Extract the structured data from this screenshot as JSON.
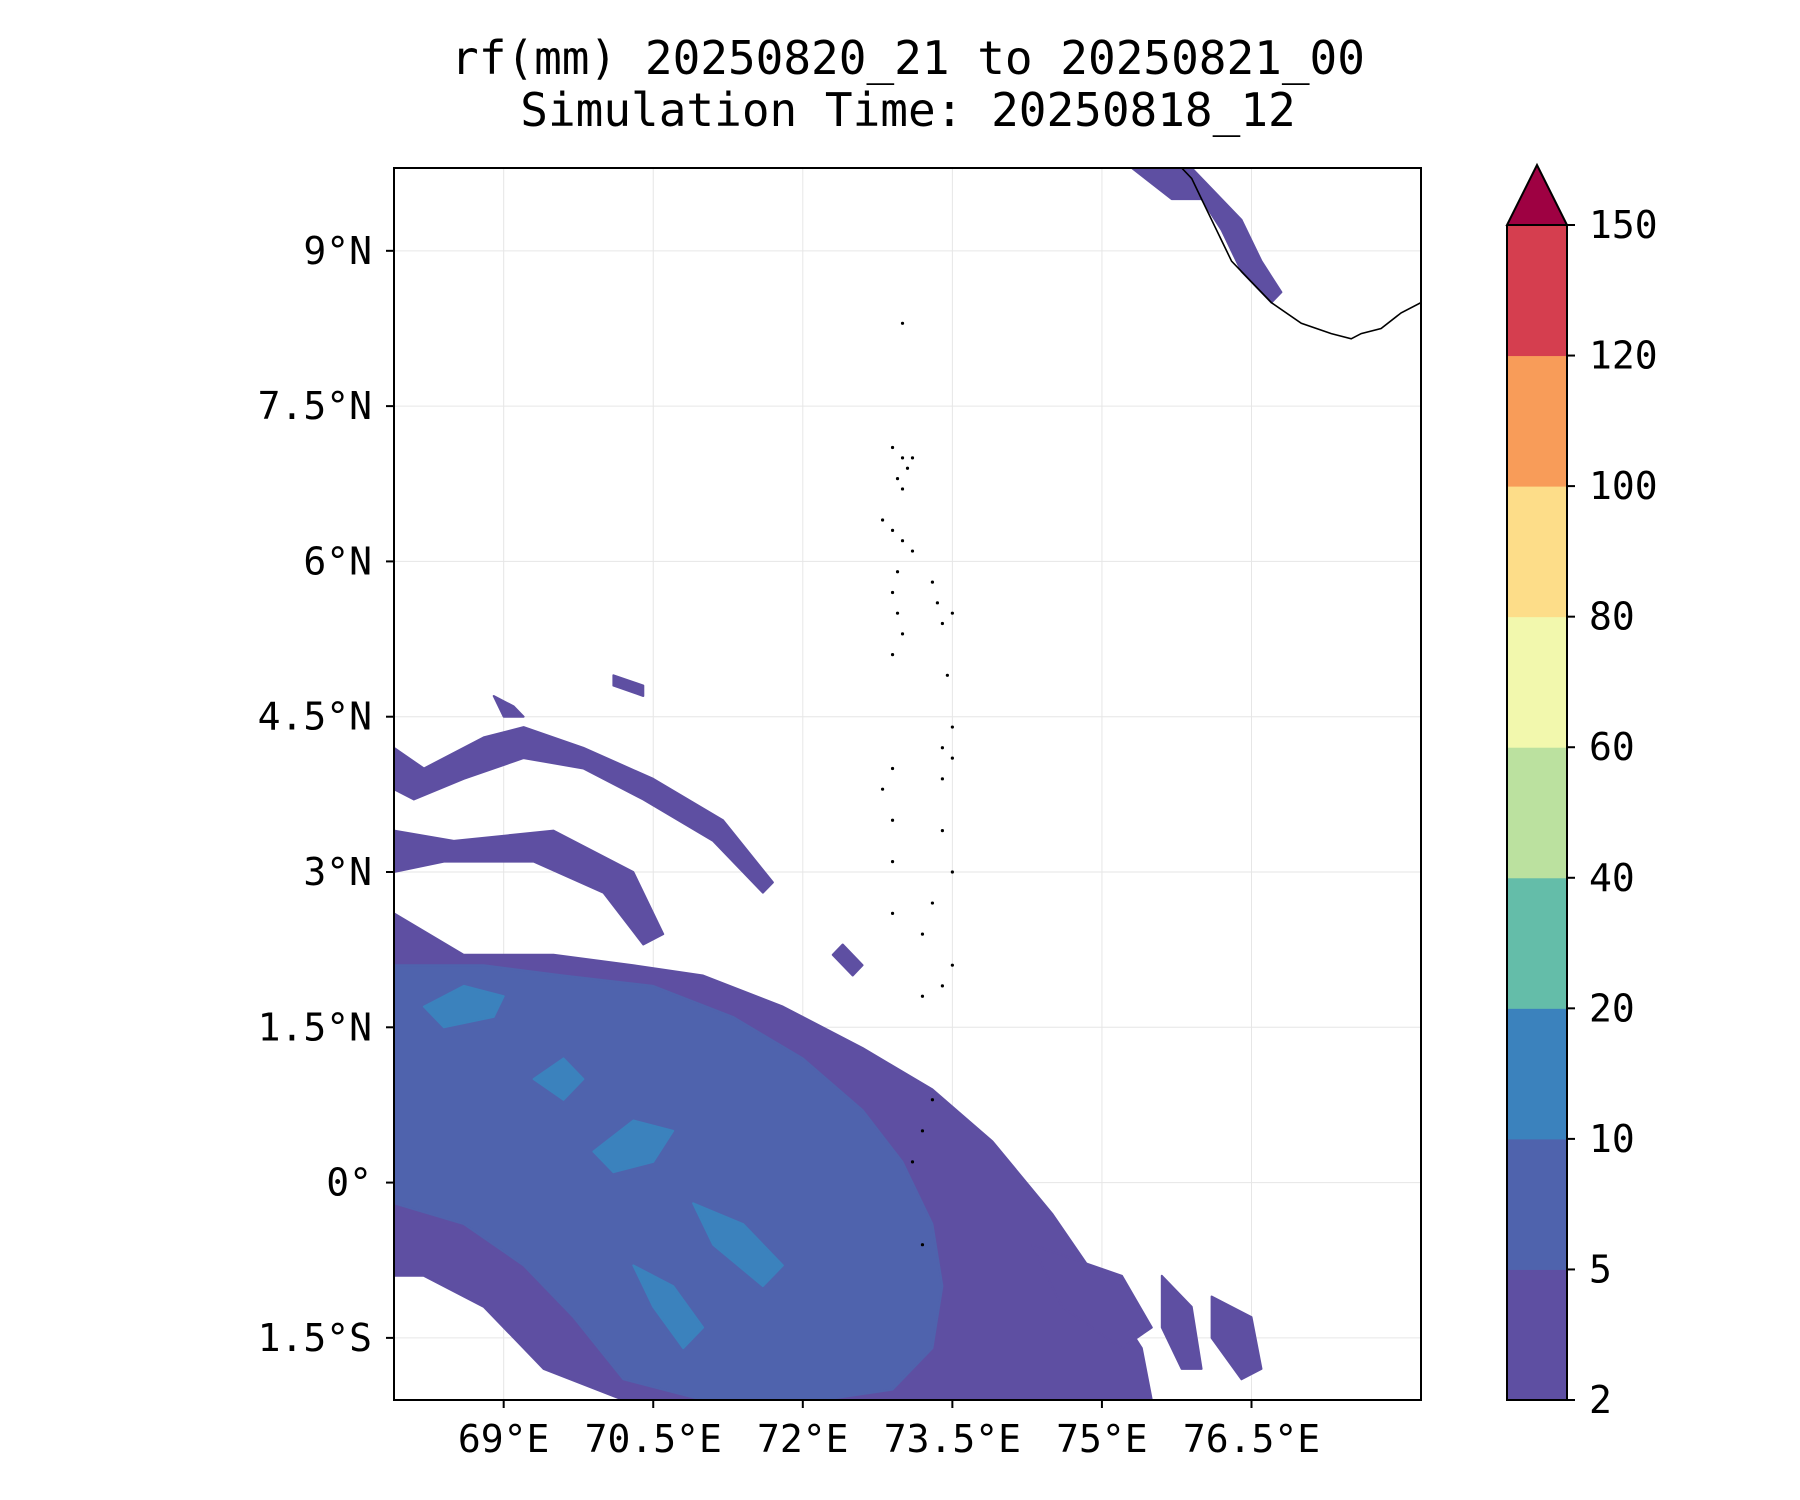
{
  "title": {
    "line1": "rf(mm) 20250820_21 to 20250821_00",
    "line2": "Simulation Time: 20250818_12"
  },
  "map": {
    "lon_range": [
      67.9,
      78.2
    ],
    "lat_range": [
      -2.1,
      9.8
    ],
    "lon_ticks": [
      {
        "value": 69.0,
        "label": "69°E"
      },
      {
        "value": 70.5,
        "label": "70.5°E"
      },
      {
        "value": 72.0,
        "label": "72°E"
      },
      {
        "value": 73.5,
        "label": "73.5°E"
      },
      {
        "value": 75.0,
        "label": "75°E"
      },
      {
        "value": 76.5,
        "label": "76.5°E"
      }
    ],
    "lat_ticks": [
      {
        "value": 9.0,
        "label": "9°N"
      },
      {
        "value": 7.5,
        "label": "7.5°N"
      },
      {
        "value": 6.0,
        "label": "6°N"
      },
      {
        "value": 4.5,
        "label": "4.5°N"
      },
      {
        "value": 3.0,
        "label": "3°N"
      },
      {
        "value": 1.5,
        "label": "1.5°N"
      },
      {
        "value": 0.0,
        "label": "0°"
      },
      {
        "value": -1.5,
        "label": "1.5°S"
      }
    ],
    "gridlines": true
  },
  "colorbar": {
    "extend": "max",
    "over_color": "#9e0142",
    "levels": [
      {
        "value": 2,
        "label": "2"
      },
      {
        "value": 5,
        "label": "5"
      },
      {
        "value": 10,
        "label": "10"
      },
      {
        "value": 20,
        "label": "20"
      },
      {
        "value": 40,
        "label": "40"
      },
      {
        "value": 60,
        "label": "60"
      },
      {
        "value": 80,
        "label": "80"
      },
      {
        "value": 100,
        "label": "100"
      },
      {
        "value": 120,
        "label": "120"
      },
      {
        "value": 150,
        "label": "150"
      }
    ],
    "colors": [
      "#5e4fa2",
      "#4f63ad",
      "#3b82bd",
      "#64bda9",
      "#bbe19f",
      "#f2f8ad",
      "#fddd89",
      "#f89c59",
      "#d53e4f"
    ]
  },
  "rain_bands": [
    {
      "level": 1,
      "points": [
        [
          67.9,
          4.2
        ],
        [
          68.2,
          4.0
        ],
        [
          68.8,
          4.3
        ],
        [
          69.2,
          4.4
        ],
        [
          69.8,
          4.2
        ],
        [
          70.5,
          3.9
        ],
        [
          71.2,
          3.5
        ],
        [
          71.7,
          2.9
        ],
        [
          71.6,
          2.8
        ],
        [
          71.1,
          3.3
        ],
        [
          70.4,
          3.7
        ],
        [
          69.8,
          4.0
        ],
        [
          69.2,
          4.1
        ],
        [
          68.6,
          3.9
        ],
        [
          68.1,
          3.7
        ],
        [
          67.9,
          3.8
        ]
      ]
    },
    {
      "level": 1,
      "points": [
        [
          67.9,
          3.4
        ],
        [
          68.5,
          3.3
        ],
        [
          69.5,
          3.4
        ],
        [
          70.3,
          3.0
        ],
        [
          70.6,
          2.4
        ],
        [
          70.4,
          2.3
        ],
        [
          70.0,
          2.8
        ],
        [
          69.3,
          3.1
        ],
        [
          68.4,
          3.1
        ],
        [
          67.9,
          3.0
        ]
      ]
    },
    {
      "level": 1,
      "points": [
        [
          67.9,
          2.6
        ],
        [
          68.6,
          2.2
        ],
        [
          69.5,
          2.2
        ],
        [
          70.3,
          2.1
        ],
        [
          71.0,
          2.0
        ],
        [
          71.8,
          1.7
        ],
        [
          72.6,
          1.3
        ],
        [
          73.3,
          0.9
        ],
        [
          73.9,
          0.4
        ],
        [
          74.5,
          -0.3
        ],
        [
          75.0,
          -1.0
        ],
        [
          75.4,
          -1.6
        ],
        [
          75.5,
          -2.1
        ],
        [
          73.0,
          -2.1
        ],
        [
          70.2,
          -2.1
        ],
        [
          69.4,
          -1.8
        ],
        [
          68.8,
          -1.2
        ],
        [
          68.2,
          -0.9
        ],
        [
          67.9,
          -0.9
        ]
      ]
    },
    {
      "level": 1,
      "points": [
        [
          74.3,
          -0.6
        ],
        [
          75.2,
          -0.9
        ],
        [
          75.5,
          -1.4
        ],
        [
          75.2,
          -1.6
        ],
        [
          74.6,
          -1.2
        ]
      ]
    },
    {
      "level": 1,
      "points": [
        [
          75.6,
          -0.9
        ],
        [
          75.9,
          -1.2
        ],
        [
          76.0,
          -1.8
        ],
        [
          75.8,
          -1.8
        ],
        [
          75.6,
          -1.4
        ]
      ]
    },
    {
      "level": 1,
      "points": [
        [
          76.1,
          -1.1
        ],
        [
          76.5,
          -1.3
        ],
        [
          76.6,
          -1.8
        ],
        [
          76.4,
          -1.9
        ],
        [
          76.1,
          -1.5
        ]
      ]
    },
    {
      "level": 1,
      "points": [
        [
          75.3,
          9.8
        ],
        [
          75.9,
          9.8
        ],
        [
          76.1,
          9.6
        ],
        [
          76.4,
          9.3
        ],
        [
          76.6,
          8.9
        ],
        [
          76.8,
          8.6
        ],
        [
          76.7,
          8.5
        ],
        [
          76.4,
          8.8
        ],
        [
          76.2,
          9.2
        ],
        [
          76.0,
          9.5
        ],
        [
          75.7,
          9.5
        ]
      ]
    },
    {
      "level": 1,
      "points": [
        [
          68.9,
          4.7
        ],
        [
          69.1,
          4.6
        ],
        [
          69.2,
          4.5
        ],
        [
          69.0,
          4.5
        ]
      ]
    },
    {
      "level": 1,
      "points": [
        [
          70.1,
          4.9
        ],
        [
          70.4,
          4.8
        ],
        [
          70.4,
          4.7
        ],
        [
          70.1,
          4.8
        ]
      ]
    },
    {
      "level": 1,
      "points": [
        [
          72.4,
          2.3
        ],
        [
          72.6,
          2.1
        ],
        [
          72.5,
          2.0
        ],
        [
          72.3,
          2.2
        ]
      ]
    },
    {
      "level": 2,
      "points": [
        [
          67.9,
          2.1
        ],
        [
          68.8,
          2.1
        ],
        [
          69.6,
          2.0
        ],
        [
          70.5,
          1.9
        ],
        [
          71.3,
          1.6
        ],
        [
          72.0,
          1.2
        ],
        [
          72.6,
          0.7
        ],
        [
          73.0,
          0.2
        ],
        [
          73.3,
          -0.4
        ],
        [
          73.4,
          -1.0
        ],
        [
          73.3,
          -1.6
        ],
        [
          72.9,
          -2.0
        ],
        [
          72.2,
          -2.1
        ],
        [
          71.0,
          -2.1
        ],
        [
          70.2,
          -1.9
        ],
        [
          69.7,
          -1.3
        ],
        [
          69.2,
          -0.8
        ],
        [
          68.6,
          -0.4
        ],
        [
          67.9,
          -0.2
        ]
      ]
    },
    {
      "level": 3,
      "points": [
        [
          68.2,
          1.7
        ],
        [
          68.6,
          1.9
        ],
        [
          69.0,
          1.8
        ],
        [
          68.9,
          1.6
        ],
        [
          68.4,
          1.5
        ]
      ]
    },
    {
      "level": 3,
      "points": [
        [
          69.9,
          0.3
        ],
        [
          70.3,
          0.6
        ],
        [
          70.7,
          0.5
        ],
        [
          70.5,
          0.2
        ],
        [
          70.1,
          0.1
        ]
      ]
    },
    {
      "level": 3,
      "points": [
        [
          70.9,
          -0.2
        ],
        [
          71.4,
          -0.4
        ],
        [
          71.8,
          -0.8
        ],
        [
          71.6,
          -1.0
        ],
        [
          71.1,
          -0.6
        ]
      ]
    },
    {
      "level": 3,
      "points": [
        [
          70.3,
          -0.8
        ],
        [
          70.7,
          -1.0
        ],
        [
          71.0,
          -1.4
        ],
        [
          70.8,
          -1.6
        ],
        [
          70.5,
          -1.2
        ]
      ]
    },
    {
      "level": 3,
      "points": [
        [
          69.3,
          1.0
        ],
        [
          69.6,
          1.2
        ],
        [
          69.8,
          1.0
        ],
        [
          69.6,
          0.8
        ]
      ]
    }
  ],
  "coastline": [
    [
      [
        75.8,
        9.8
      ],
      [
        75.9,
        9.7
      ],
      [
        76.0,
        9.5
      ],
      [
        76.1,
        9.3
      ],
      [
        76.2,
        9.1
      ],
      [
        76.3,
        8.9
      ],
      [
        76.5,
        8.7
      ],
      [
        76.7,
        8.5
      ],
      [
        77.0,
        8.3
      ],
      [
        77.3,
        8.2
      ],
      [
        77.5,
        8.15
      ],
      [
        77.6,
        8.2
      ],
      [
        77.8,
        8.25
      ],
      [
        78.0,
        8.4
      ],
      [
        78.2,
        8.5
      ]
    ]
  ],
  "islands": [
    [
      73.0,
      8.3
    ],
    [
      72.9,
      7.1
    ],
    [
      73.0,
      7.0
    ],
    [
      73.05,
      6.9
    ],
    [
      73.1,
      7.0
    ],
    [
      72.95,
      6.8
    ],
    [
      73.0,
      6.7
    ],
    [
      72.8,
      6.4
    ],
    [
      72.9,
      6.3
    ],
    [
      73.0,
      6.2
    ],
    [
      73.1,
      6.1
    ],
    [
      72.95,
      5.9
    ],
    [
      72.9,
      5.7
    ],
    [
      72.95,
      5.5
    ],
    [
      73.3,
      5.8
    ],
    [
      73.35,
      5.6
    ],
    [
      73.4,
      5.4
    ],
    [
      73.5,
      5.5
    ],
    [
      73.0,
      5.3
    ],
    [
      72.9,
      5.1
    ],
    [
      73.45,
      4.9
    ],
    [
      73.5,
      4.4
    ],
    [
      73.4,
      4.2
    ],
    [
      73.5,
      4.1
    ],
    [
      72.9,
      4.0
    ],
    [
      72.8,
      3.8
    ],
    [
      73.4,
      3.9
    ],
    [
      72.9,
      3.5
    ],
    [
      73.4,
      3.4
    ],
    [
      72.9,
      3.1
    ],
    [
      73.5,
      3.0
    ],
    [
      73.3,
      2.7
    ],
    [
      72.9,
      2.6
    ],
    [
      73.2,
      2.4
    ],
    [
      73.5,
      2.1
    ],
    [
      73.4,
      1.9
    ],
    [
      73.2,
      1.8
    ],
    [
      73.3,
      0.8
    ],
    [
      73.2,
      0.5
    ],
    [
      73.1,
      0.2
    ],
    [
      73.2,
      -0.6
    ]
  ]
}
